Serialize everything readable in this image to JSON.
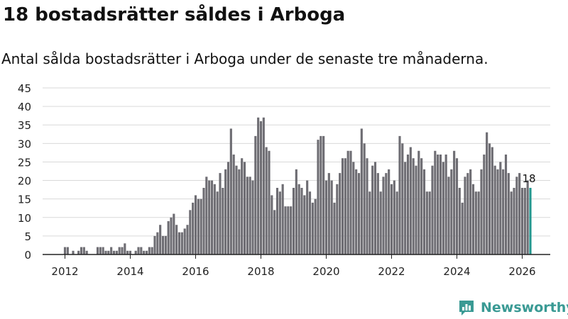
{
  "header": {
    "title": "18 bostadsrätter såldes i Arboga",
    "subtitle": "Antal sålda bostadsrätter i Arboga under de senaste tre månaderna."
  },
  "brand": {
    "name": "Newsworthy",
    "icon": "newsworthy-logo-icon"
  },
  "colors": {
    "bar": "#6e6d73",
    "highlight": "#23978f",
    "grid": "#d9d9d9",
    "axis": "#222222",
    "brand": "#3a9a94"
  },
  "chart_data": {
    "type": "bar",
    "x_start": "2012-01",
    "x_unit": "month",
    "xticks": [
      "2012",
      "2014",
      "2016",
      "2018",
      "2020",
      "2022",
      "2024",
      "2026"
    ],
    "yticks": [
      0,
      5,
      10,
      15,
      20,
      25,
      30,
      35,
      40,
      45
    ],
    "ylim": [
      0,
      45
    ],
    "grid": "horizontal",
    "values": [
      2,
      2,
      0,
      1,
      0,
      1,
      2,
      2,
      1,
      0,
      0,
      0,
      2,
      2,
      2,
      1,
      1,
      2,
      1,
      1,
      2,
      2,
      3,
      1,
      1,
      0,
      1,
      2,
      2,
      1,
      1,
      2,
      2,
      5,
      6,
      8,
      5,
      5,
      9,
      10,
      11,
      8,
      6,
      6,
      7,
      8,
      12,
      14,
      16,
      15,
      15,
      18,
      21,
      20,
      20,
      19,
      17,
      22,
      18,
      23,
      25,
      34,
      27,
      24,
      23,
      26,
      25,
      21,
      21,
      20,
      32,
      37,
      36,
      37,
      29,
      28,
      16,
      12,
      18,
      17,
      19,
      13,
      13,
      13,
      18,
      23,
      19,
      18,
      16,
      20,
      17,
      14,
      15,
      31,
      32,
      32,
      20,
      22,
      20,
      14,
      19,
      22,
      26,
      26,
      28,
      28,
      25,
      23,
      22,
      34,
      30,
      26,
      17,
      24,
      25,
      22,
      17,
      21,
      22,
      23,
      19,
      20,
      17,
      32,
      30,
      25,
      27,
      29,
      26,
      24,
      28,
      26,
      23,
      17,
      17,
      24,
      28,
      27,
      27,
      25,
      27,
      21,
      23,
      28,
      26,
      18,
      14,
      21,
      22,
      23,
      19,
      17,
      17,
      23,
      27,
      33,
      30,
      29,
      24,
      23,
      25,
      23,
      27,
      22,
      17,
      18,
      21,
      22,
      18,
      18,
      20,
      18
    ],
    "highlight_label": "18"
  }
}
